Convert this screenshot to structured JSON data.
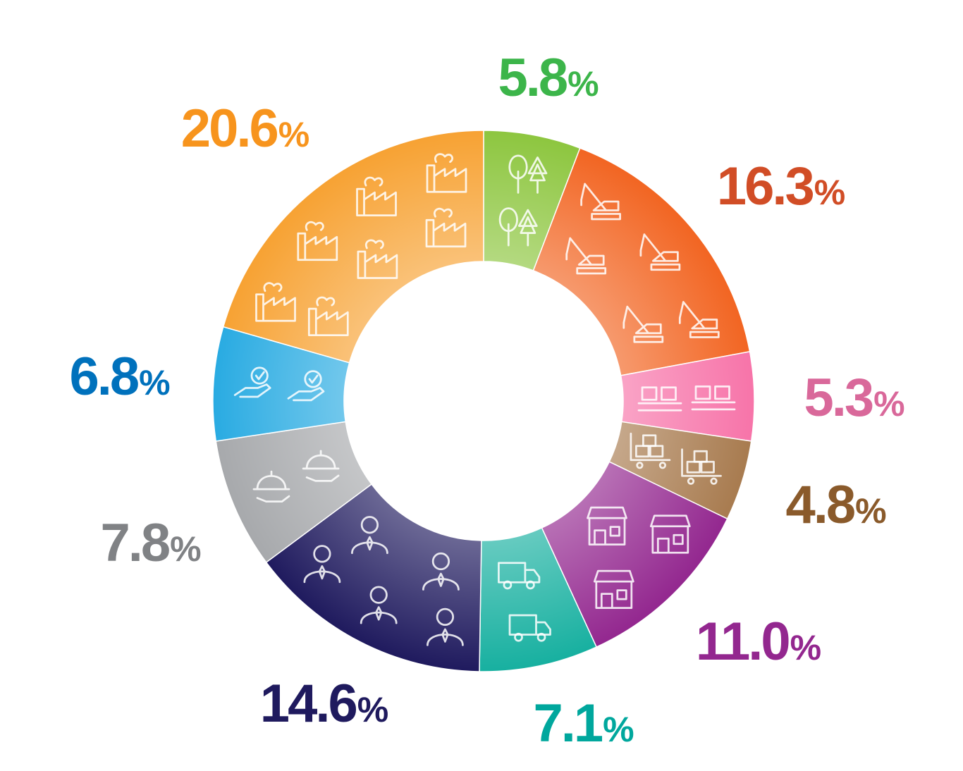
{
  "chart_data": {
    "type": "pie",
    "variant": "donut",
    "title": "",
    "legend": "none",
    "slices": [
      {
        "label": "5.8%",
        "value": 5.8,
        "color": "#8dc63f",
        "color_label": "#3cb54a",
        "icon": "trees-icon"
      },
      {
        "label": "16.3%",
        "value": 16.3,
        "color": "#f26522",
        "color_label": "#d14d26",
        "icon": "crane-icon"
      },
      {
        "label": "5.3%",
        "value": 5.3,
        "color": "#f774a9",
        "color_label": "#d9689a",
        "icon": "conveyor-boxes-icon"
      },
      {
        "label": "4.8%",
        "value": 4.8,
        "color": "#a87b4f",
        "color_label": "#8a5a2b",
        "icon": "cart-boxes-icon"
      },
      {
        "label": "11.0%",
        "value": 11.0,
        "color": "#93278f",
        "color_label": "#93278f",
        "icon": "storefront-icon"
      },
      {
        "label": "7.1%",
        "value": 7.1,
        "color": "#17b0a0",
        "color_label": "#00a79d",
        "icon": "truck-icon"
      },
      {
        "label": "14.6%",
        "value": 14.6,
        "color": "#1f1a5e",
        "color_label": "#1f1a5e",
        "icon": "businessperson-icon"
      },
      {
        "label": "7.8%",
        "value": 7.8,
        "color": "#a7a9ac",
        "color_label": "#808285",
        "icon": "serving-cloche-icon"
      },
      {
        "label": "6.8%",
        "value": 6.8,
        "color": "#29abe2",
        "color_label": "#0071bc",
        "icon": "hand-check-icon"
      },
      {
        "label": "20.6%",
        "value": 20.6,
        "color": "#f7a233",
        "color_label": "#f7941d",
        "icon": "factory-icon"
      }
    ]
  }
}
